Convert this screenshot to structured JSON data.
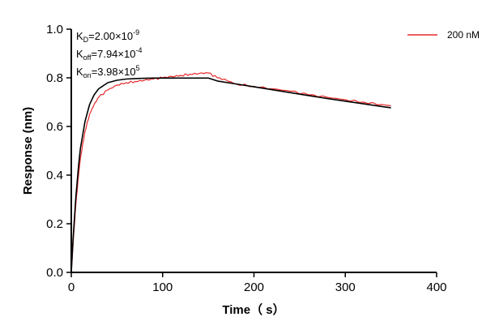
{
  "chart_data": {
    "type": "line",
    "title": "",
    "xlabel": "Time（ s）",
    "ylabel": "Response (nm)",
    "xlim": [
      0,
      400
    ],
    "ylim": [
      0.0,
      1.0
    ],
    "xticks": [
      0,
      100,
      200,
      300,
      400
    ],
    "xtick_labels": [
      "0",
      "100",
      "200",
      "300",
      "400"
    ],
    "yticks": [
      0.0,
      0.2,
      0.4,
      0.6,
      0.8,
      1.0
    ],
    "ytick_labels": [
      "0.0",
      "0.2",
      "0.4",
      "0.6",
      "0.8",
      "1.0"
    ],
    "grid": false,
    "legend_position": "top-right",
    "annotations": {
      "kd": {
        "base": "K",
        "sub": "D",
        "text": "=2.00×10",
        "sup": "-9"
      },
      "koff": {
        "base": "K",
        "sub": "off",
        "text": "=7.94×10",
        "sup": "-4"
      },
      "kon": {
        "base": "K",
        "sub": "on",
        "text": "=3.98×10",
        "sup": "5"
      }
    },
    "series": [
      {
        "name": "200 nM",
        "color": "#e8292b",
        "x": [
          0,
          2,
          5,
          8,
          10,
          15,
          20,
          25,
          30,
          40,
          50,
          60,
          70,
          80,
          90,
          100,
          110,
          120,
          130,
          140,
          150,
          160,
          170,
          180,
          200,
          220,
          240,
          260,
          280,
          300,
          320,
          340,
          350
        ],
        "y": [
          0.0,
          0.12,
          0.28,
          0.4,
          0.47,
          0.58,
          0.65,
          0.69,
          0.72,
          0.75,
          0.77,
          0.78,
          0.785,
          0.79,
          0.795,
          0.8,
          0.805,
          0.81,
          0.815,
          0.818,
          0.82,
          0.8,
          0.79,
          0.775,
          0.765,
          0.755,
          0.745,
          0.73,
          0.72,
          0.71,
          0.7,
          0.69,
          0.685
        ]
      },
      {
        "name": "",
        "color": "#000000",
        "x": [
          0,
          2,
          5,
          8,
          10,
          15,
          20,
          25,
          30,
          40,
          50,
          60,
          70,
          80,
          90,
          100,
          110,
          120,
          130,
          140,
          150,
          160,
          180,
          200,
          220,
          240,
          260,
          280,
          300,
          320,
          340,
          350
        ],
        "y": [
          0.0,
          0.14,
          0.31,
          0.44,
          0.51,
          0.62,
          0.69,
          0.73,
          0.755,
          0.78,
          0.79,
          0.795,
          0.797,
          0.798,
          0.799,
          0.799,
          0.799,
          0.799,
          0.799,
          0.799,
          0.799,
          0.787,
          0.775,
          0.763,
          0.751,
          0.739,
          0.727,
          0.715,
          0.704,
          0.693,
          0.682,
          0.677
        ]
      }
    ]
  }
}
